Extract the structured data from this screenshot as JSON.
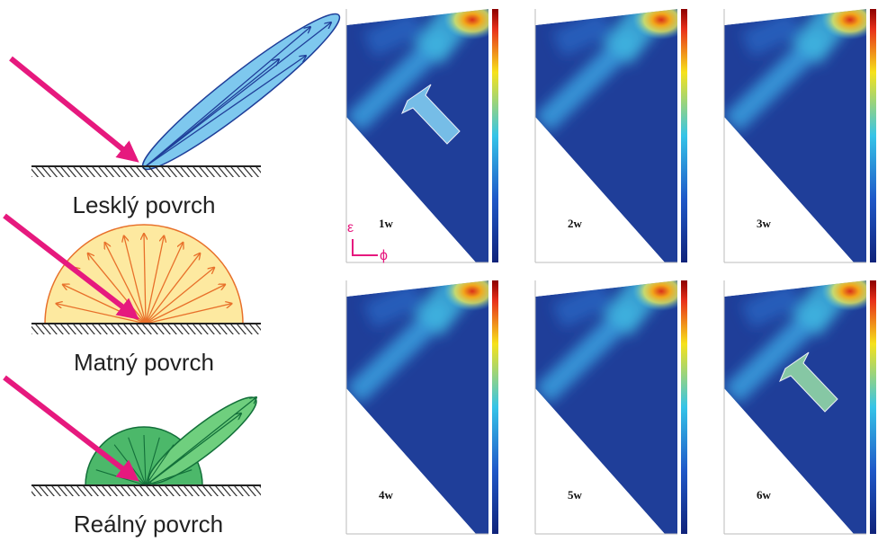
{
  "illustrations": [
    {
      "label": "Lesklý povrch"
    },
    {
      "label": "Matný povrch"
    },
    {
      "label": "Reálný povrch"
    }
  ],
  "panels": [
    {
      "label": "1w"
    },
    {
      "label": "2w"
    },
    {
      "label": "3w"
    },
    {
      "label": "4w"
    },
    {
      "label": "5w"
    },
    {
      "label": "6w"
    }
  ],
  "axes": {
    "y": "ε",
    "x": "ϕ"
  }
}
